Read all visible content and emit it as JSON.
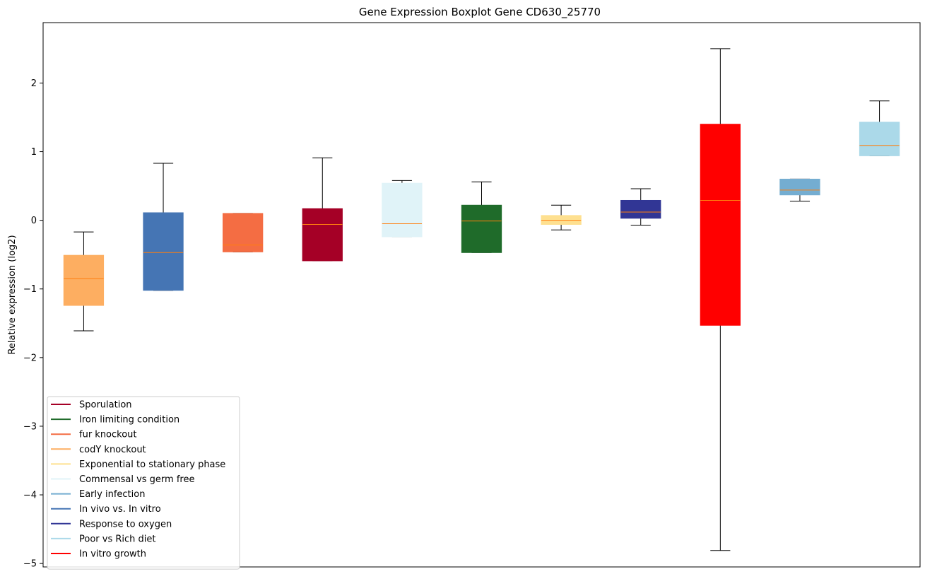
{
  "chart_data": {
    "type": "boxplot",
    "title": "Gene Expression Boxplot Gene CD630_25770",
    "xlabel": "",
    "ylabel": "Relative expression (log2)",
    "ylim": [
      -5.05,
      2.88
    ],
    "yticks": [
      -5,
      -4,
      -3,
      -2,
      -1,
      0,
      1,
      2
    ],
    "ytick_labels": [
      "−5",
      "−4",
      "−3",
      "−2",
      "−1",
      "0",
      "1",
      "2"
    ],
    "grid": false,
    "legend_position": "lower-left",
    "median_color": "#ff7f0e",
    "boxes": [
      {
        "name": "codY knockout",
        "color": "#fdae61",
        "whisker_low": -1.61,
        "q1": -1.24,
        "median": -0.85,
        "q3": -0.51,
        "whisker_high": -0.17
      },
      {
        "name": "In vivo vs. In vitro",
        "color": "#4575b4",
        "whisker_low": -1.02,
        "q1": -1.02,
        "median": -0.47,
        "q3": 0.11,
        "whisker_high": 0.83
      },
      {
        "name": "fur knockout",
        "color": "#f46d43",
        "whisker_low": -0.46,
        "q1": -0.46,
        "median": -0.36,
        "q3": 0.1,
        "whisker_high": 0.1
      },
      {
        "name": "Sporulation",
        "color": "#a50026",
        "whisker_low": -0.59,
        "q1": -0.59,
        "median": -0.06,
        "q3": 0.17,
        "whisker_high": 0.91
      },
      {
        "name": "Commensal vs germ free",
        "color": "#e0f3f8",
        "whisker_low": -0.24,
        "q1": -0.24,
        "median": -0.05,
        "q3": 0.54,
        "whisker_high": 0.58
      },
      {
        "name": "Iron limiting condition",
        "color": "#1f6b2a",
        "whisker_low": -0.47,
        "q1": -0.47,
        "median": -0.01,
        "q3": 0.22,
        "whisker_high": 0.56
      },
      {
        "name": "Exponential to stationary phase",
        "color": "#fee090",
        "whisker_low": -0.14,
        "q1": -0.06,
        "median": 0.0,
        "q3": 0.07,
        "whisker_high": 0.22
      },
      {
        "name": "Response to oxygen",
        "color": "#313695",
        "whisker_low": -0.07,
        "q1": 0.03,
        "median": 0.12,
        "q3": 0.29,
        "whisker_high": 0.46
      },
      {
        "name": "In vitro growth",
        "color": "#ff0000",
        "whisker_low": -4.81,
        "q1": -1.53,
        "median": 0.29,
        "q3": 1.4,
        "whisker_high": 2.5
      },
      {
        "name": "Early infection",
        "color": "#74add1",
        "whisker_low": 0.28,
        "q1": 0.37,
        "median": 0.44,
        "q3": 0.6,
        "whisker_high": 0.6
      },
      {
        "name": "Poor vs Rich diet",
        "color": "#abd9e9",
        "whisker_low": 0.94,
        "q1": 0.94,
        "median": 1.09,
        "q3": 1.43,
        "whisker_high": 1.74
      }
    ],
    "legend": [
      {
        "label": "Sporulation",
        "color": "#a50026"
      },
      {
        "label": "Iron limiting condition",
        "color": "#1f6b2a"
      },
      {
        "label": "fur knockout",
        "color": "#f46d43"
      },
      {
        "label": "codY knockout",
        "color": "#fdae61"
      },
      {
        "label": "Exponential to stationary phase",
        "color": "#fee090"
      },
      {
        "label": "Commensal vs germ free",
        "color": "#e0f3f8"
      },
      {
        "label": "Early infection",
        "color": "#74add1"
      },
      {
        "label": "In vivo vs. In vitro",
        "color": "#4575b4"
      },
      {
        "label": "Response to oxygen",
        "color": "#313695"
      },
      {
        "label": "Poor vs Rich diet",
        "color": "#abd9e9"
      },
      {
        "label": "In vitro growth",
        "color": "#ff0000"
      }
    ]
  }
}
